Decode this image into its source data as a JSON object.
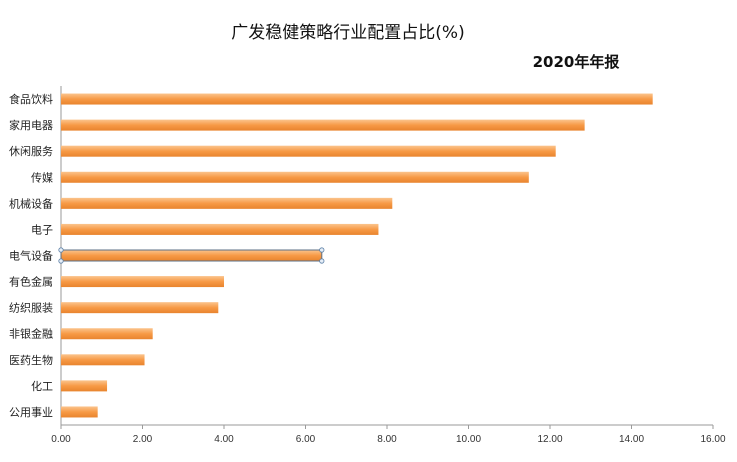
{
  "chart_data": {
    "type": "bar",
    "orientation": "horizontal",
    "title": "广发稳健策略行业配置占比(%)",
    "subtitle": "2020年年报",
    "categories": [
      "食品饮料",
      "家用电器",
      "休闲服务",
      "传媒",
      "机械设备",
      "电子",
      "电气设备",
      "有色金属",
      "纺织服装",
      "非银金融",
      "医药生物",
      "化工",
      "公用事业"
    ],
    "values": [
      14.52,
      12.85,
      12.14,
      11.48,
      8.13,
      7.79,
      6.4,
      4.0,
      3.86,
      2.25,
      2.05,
      1.13,
      0.9
    ],
    "xlim": [
      0,
      16
    ],
    "xticks": [
      "0.00",
      "2.00",
      "4.00",
      "6.00",
      "8.00",
      "10.00",
      "12.00",
      "14.00",
      "16.00"
    ],
    "tick_values": [
      0,
      2,
      4,
      6,
      8,
      10,
      12,
      14,
      16
    ],
    "selected_category": "电气设备",
    "grid": false,
    "bar_color": "#f79a46"
  }
}
